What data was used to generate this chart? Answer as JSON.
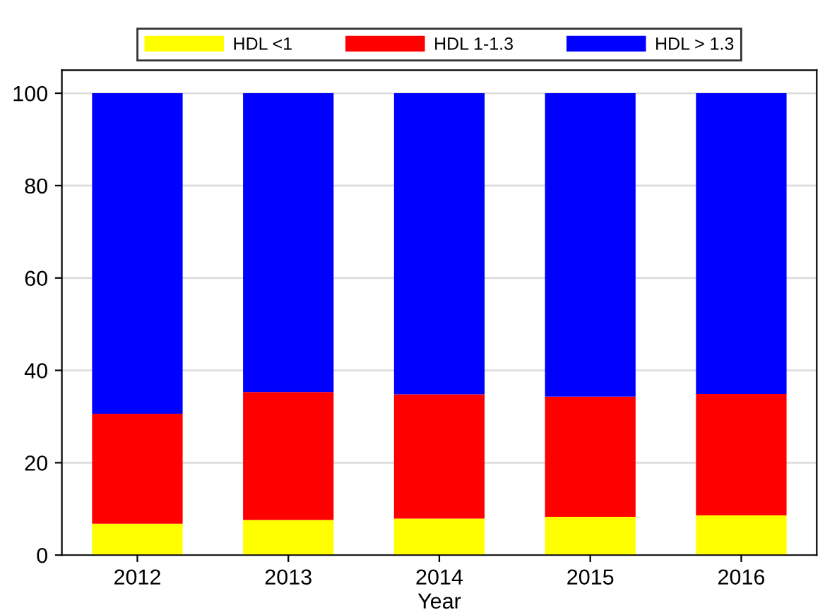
{
  "chart_data": {
    "type": "bar",
    "stacked": true,
    "xlabel": "Year",
    "categories": [
      "2012",
      "2013",
      "2014",
      "2015",
      "2016"
    ],
    "series": [
      {
        "name": "HDL <1",
        "color": "#ffff00",
        "values": [
          6.8,
          7.6,
          7.9,
          8.3,
          8.6
        ]
      },
      {
        "name": "HDL 1-1.3",
        "color": "#ff0000",
        "values": [
          23.8,
          27.7,
          26.9,
          26.0,
          26.3
        ]
      },
      {
        "name": "HDL > 1.3",
        "color": "#0000ff",
        "values": [
          69.4,
          64.7,
          65.2,
          65.7,
          65.1
        ]
      }
    ],
    "ylim": [
      0,
      105
    ],
    "yticks": [
      0,
      20,
      40,
      60,
      80,
      100
    ],
    "grid": "y",
    "legend": "top"
  }
}
